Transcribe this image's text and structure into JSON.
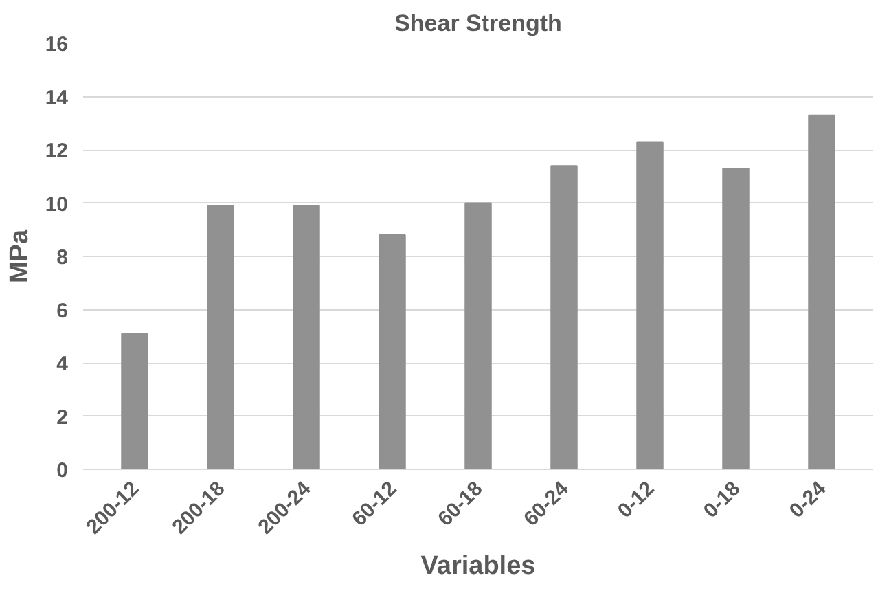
{
  "chart_data": {
    "type": "bar",
    "title": "Shear Strength",
    "xlabel": "Variables",
    "ylabel": "MPa",
    "categories": [
      "200-12",
      "200-18",
      "200-24",
      "60-12",
      "60-18",
      "60-24",
      "0-12",
      "0-18",
      "0-24"
    ],
    "values": [
      5.1,
      9.9,
      9.9,
      8.8,
      10.0,
      11.4,
      12.3,
      11.3,
      13.3
    ],
    "color": "#919191",
    "ylim": [
      0,
      16
    ],
    "yticks": [
      0,
      2,
      4,
      6,
      8,
      10,
      12,
      14,
      16
    ],
    "grid": "y"
  }
}
